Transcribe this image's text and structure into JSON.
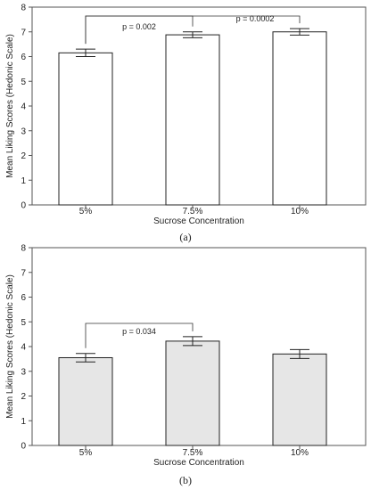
{
  "chart_data": [
    {
      "type": "bar",
      "panel_label": "(a)",
      "categories": [
        "5%",
        "7.5%",
        "10%"
      ],
      "values": [
        6.15,
        6.88,
        7.0
      ],
      "errors": [
        0.15,
        0.12,
        0.13
      ],
      "bar_color": "#ffffff",
      "xlabel": "Sucrose Concentration",
      "ylabel": "Mean Liking Scores (Hedonic Scale)",
      "ylim": [
        0,
        8
      ],
      "yticks": [
        "0",
        "1",
        "2",
        "3",
        "4",
        "5",
        "6",
        "7",
        "8"
      ],
      "annotations": [
        {
          "from": 0,
          "to": 1,
          "text": "p = 0.002"
        },
        {
          "from": 0,
          "to": 2,
          "text": "p = 0.0002"
        }
      ]
    },
    {
      "type": "bar",
      "panel_label": "(b)",
      "categories": [
        "5%",
        "7.5%",
        "10%"
      ],
      "values": [
        3.55,
        4.22,
        3.7
      ],
      "errors": [
        0.17,
        0.18,
        0.18
      ],
      "bar_color": "#e6e6e6",
      "xlabel": "Sucrose Concentration",
      "ylabel": "Mean Liking Scores (Hedonic Scale)",
      "ylim": [
        0,
        8
      ],
      "yticks": [
        "0",
        "1",
        "2",
        "3",
        "4",
        "5",
        "6",
        "7",
        "8"
      ],
      "annotations": [
        {
          "from": 0,
          "to": 1,
          "text": "p = 0.034"
        }
      ]
    }
  ]
}
